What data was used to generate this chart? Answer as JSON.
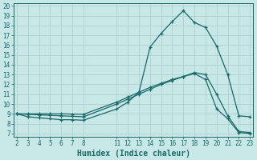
{
  "xlabel": "Humidex (Indice chaleur)",
  "bg_color": "#c8e8e8",
  "grid_color": "#a8cece",
  "line_color": "#1a6868",
  "xlim": [
    2,
    23
  ],
  "ylim": [
    7,
    20
  ],
  "xticks": [
    2,
    3,
    4,
    5,
    6,
    7,
    8,
    11,
    12,
    13,
    14,
    15,
    16,
    17,
    18,
    19,
    20,
    21,
    22,
    23
  ],
  "yticks": [
    7,
    8,
    9,
    10,
    11,
    12,
    13,
    14,
    15,
    16,
    17,
    18,
    19,
    20
  ],
  "line1_x": [
    2,
    3,
    4,
    5,
    6,
    7,
    8,
    11,
    12,
    13,
    14,
    15,
    16,
    17,
    18,
    19,
    20,
    21,
    22,
    23
  ],
  "line1_y": [
    9.0,
    8.7,
    8.6,
    8.5,
    8.4,
    8.4,
    8.35,
    9.5,
    10.2,
    11.2,
    15.8,
    17.2,
    18.4,
    19.5,
    18.3,
    17.8,
    15.9,
    13.0,
    8.8,
    8.7
  ],
  "line2_x": [
    2,
    3,
    4,
    5,
    6,
    7,
    8,
    11,
    12,
    13,
    14,
    15,
    16,
    17,
    18,
    19,
    20,
    21,
    22,
    23
  ],
  "line2_y": [
    9.0,
    8.95,
    8.9,
    8.85,
    8.8,
    8.75,
    8.7,
    10.0,
    10.5,
    11.0,
    11.5,
    12.0,
    12.4,
    12.8,
    13.2,
    13.0,
    11.0,
    8.8,
    7.2,
    7.1
  ],
  "line3_x": [
    2,
    3,
    4,
    5,
    6,
    7,
    8,
    11,
    12,
    13,
    14,
    15,
    16,
    17,
    18,
    19,
    20,
    21,
    22,
    23
  ],
  "line3_y": [
    9.0,
    9.0,
    9.0,
    9.0,
    9.0,
    8.98,
    8.95,
    10.2,
    10.7,
    11.2,
    11.7,
    12.1,
    12.5,
    12.8,
    13.1,
    12.5,
    9.5,
    8.5,
    7.1,
    7.0
  ],
  "xlabel_fontsize": 7,
  "tick_fontsize": 5.5
}
